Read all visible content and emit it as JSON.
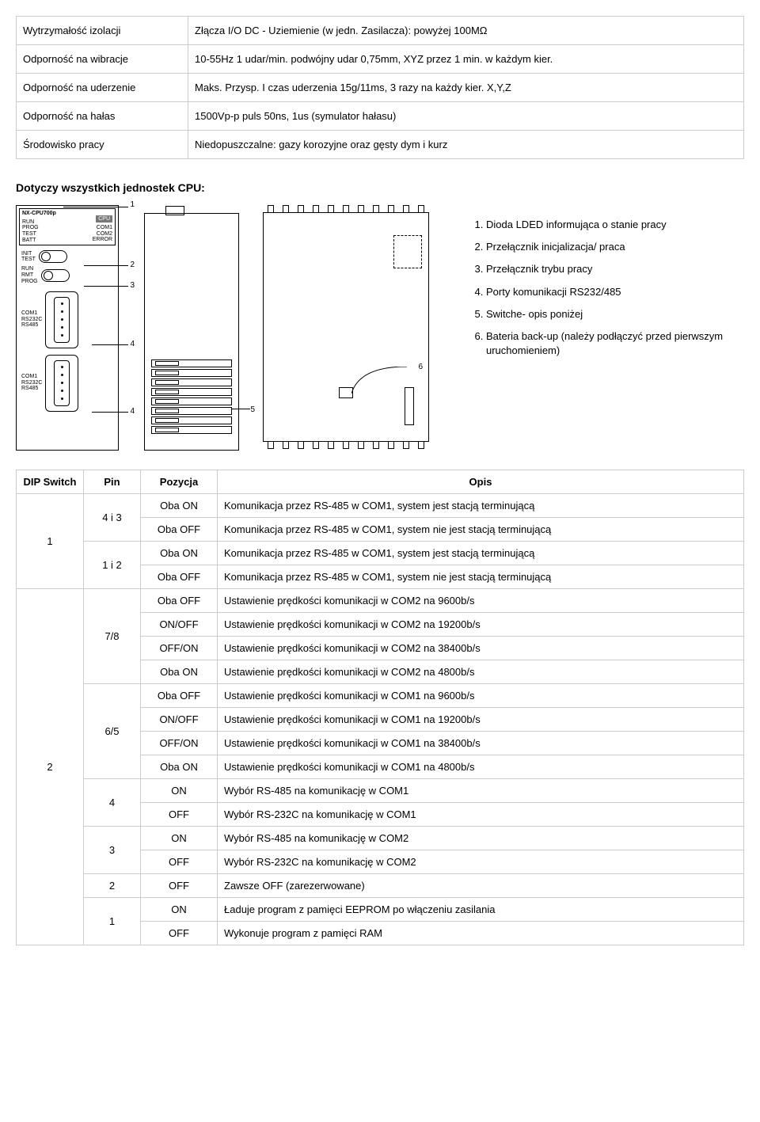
{
  "spec_table": {
    "rows": [
      {
        "label": "Wytrzymałość izolacji",
        "value": "Złącza I/O DC - Uziemienie (w jedn. Zasilacza): powyżej 100MΩ"
      },
      {
        "label": "Odporność na wibracje",
        "value": "10-55Hz 1 udar/min. podwójny udar 0,75mm, XYZ przez 1 min. w każdym kier."
      },
      {
        "label": "Odporność na uderzenie",
        "value": "Maks. Przysp. I czas uderzenia 15g/11ms, 3 razy na każdy kier. X,Y,Z"
      },
      {
        "label": "Odporność na hałas",
        "value": "1500Vp-p puls 50ns, 1us (symulator hałasu)"
      },
      {
        "label": "Środowisko pracy",
        "value": "Niedopuszczalne: gazy korozyjne oraz gęsty dym i kurz"
      }
    ]
  },
  "section_heading": "Dotyczy wszystkich jednostek CPU:",
  "device_front": {
    "model": "NX-CPU700p",
    "cpu_tag": "CPU",
    "leds_left": [
      "RUN",
      "PROG",
      "TEST",
      "BATT"
    ],
    "leds_right": [
      "COM1",
      "COM2",
      "ERROR"
    ],
    "sw_modes_top": [
      "INIT",
      "TEST"
    ],
    "sw_modes_bot": [
      "RUN",
      "RMT",
      "PROG"
    ],
    "port1": [
      "COM1",
      "RS232C",
      "RS485"
    ],
    "port2": [
      "COM1",
      "RS232C",
      "RS485"
    ],
    "callouts": [
      "1",
      "2",
      "3",
      "4",
      "4"
    ]
  },
  "device_side": {
    "callout": "5"
  },
  "device_back": {
    "callout": "6"
  },
  "legend": [
    "Dioda LDED informująca o stanie pracy",
    "Przełącznik inicjalizacja/ praca",
    "Przełącznik trybu pracy",
    "Porty komunikacji RS232/485",
    "Switche- opis poniżej",
    "Bateria back-up (należy podłączyć przed pierwszym uruchomieniem)"
  ],
  "dip_table": {
    "headers": [
      "DIP Switch",
      "Pin",
      "Pozycja",
      "Opis"
    ],
    "rows": [
      {
        "sw": "1",
        "sw_rowspan": 4,
        "pin": "4 i 3",
        "pin_rowspan": 2,
        "pos": "Oba ON",
        "desc": "Komunikacja przez RS-485 w COM1, system jest stacją terminującą"
      },
      {
        "pos": "Oba OFF",
        "desc": "Komunikacja przez RS-485 w COM1, system nie jest stacją terminującą"
      },
      {
        "pin": "1 i 2",
        "pin_rowspan": 2,
        "pos": "Oba ON",
        "desc": "Komunikacja przez RS-485 w COM1, system jest stacją terminującą"
      },
      {
        "pos": "Oba OFF",
        "desc": "Komunikacja przez RS-485 w COM1, system nie jest stacją terminującą"
      },
      {
        "sw": "2",
        "sw_rowspan": 15,
        "pin": "7/8",
        "pin_rowspan": 4,
        "pos": "Oba OFF",
        "desc": "Ustawienie prędkości komunikacji w COM2 na 9600b/s"
      },
      {
        "pos": "ON/OFF",
        "desc": "Ustawienie prędkości komunikacji w COM2 na 19200b/s"
      },
      {
        "pos": "OFF/ON",
        "desc": "Ustawienie prędkości komunikacji w COM2 na 38400b/s"
      },
      {
        "pos": "Oba ON",
        "desc": "Ustawienie prędkości komunikacji w COM2 na 4800b/s"
      },
      {
        "pin": "6/5",
        "pin_rowspan": 4,
        "pos": "Oba OFF",
        "desc": "Ustawienie prędkości komunikacji w COM1 na 9600b/s"
      },
      {
        "pos": "ON/OFF",
        "desc": "Ustawienie prędkości komunikacji w COM1 na 19200b/s"
      },
      {
        "pos": "OFF/ON",
        "desc": "Ustawienie prędkości komunikacji w COM1 na 38400b/s"
      },
      {
        "pos": "Oba ON",
        "desc": "Ustawienie prędkości komunikacji w COM1 na 4800b/s"
      },
      {
        "pin": "4",
        "pin_rowspan": 2,
        "pos": "ON",
        "desc": "Wybór RS-485 na komunikację w COM1"
      },
      {
        "pos": "OFF",
        "desc": "Wybór RS-232C na komunikację w COM1"
      },
      {
        "pin": "3",
        "pin_rowspan": 2,
        "pos": "ON",
        "desc": "Wybór RS-485 na komunikację w COM2"
      },
      {
        "pos": "OFF",
        "desc": "Wybór RS-232C na komunikację w COM2"
      },
      {
        "pin": "2",
        "pin_rowspan": 1,
        "pos": "OFF",
        "desc": "Zawsze OFF (zarezerwowane)"
      },
      {
        "pin": "1",
        "pin_rowspan": 2,
        "pos": "ON",
        "desc": "Ładuje program z pamięci EEPROM po włączeniu zasilania"
      },
      {
        "pos": "OFF",
        "desc": "Wykonuje program z pamięci RAM"
      }
    ]
  },
  "colors": {
    "border": "#cccccc",
    "text": "#000000",
    "background": "#ffffff"
  }
}
